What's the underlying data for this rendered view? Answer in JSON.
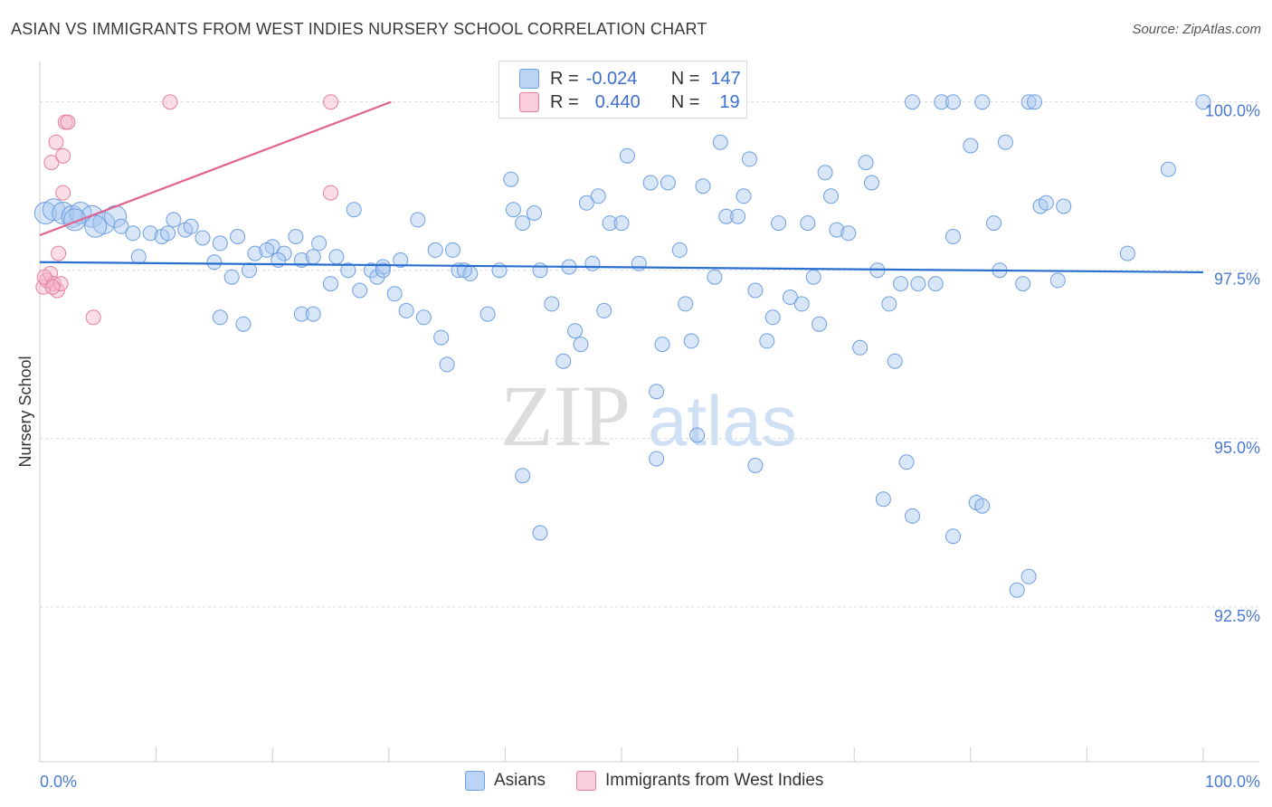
{
  "title": "ASIAN VS IMMIGRANTS FROM WEST INDIES NURSERY SCHOOL CORRELATION CHART",
  "source": "Source: ZipAtlas.com",
  "watermark": {
    "zip": "ZIP",
    "atlas": "atlas"
  },
  "legend": {
    "r_label": "R =",
    "n_label": "N =",
    "rows": [
      {
        "r": "-0.024",
        "n": "147",
        "color": "#a8c8f0"
      },
      {
        "r": "0.440",
        "n": "19",
        "color": "#f5b3c8"
      }
    ]
  },
  "bottom_legend": [
    {
      "label": "Asians",
      "color": "#a8c8f0"
    },
    {
      "label": "Immigrants from West Indies",
      "color": "#f5b3c8"
    }
  ],
  "chart_data": {
    "type": "scatter",
    "title": "ASIAN VS IMMIGRANTS FROM WEST INDIES NURSERY SCHOOL CORRELATION CHART",
    "xlabel": "",
    "ylabel": "Nursery School",
    "xlim": [
      0,
      100
    ],
    "ylim": [
      90.2,
      100.6
    ],
    "x_tick_labels": [
      "0.0%",
      "100.0%"
    ],
    "y_ticks": [
      100.0,
      97.5,
      95.0,
      92.5
    ],
    "y_tick_labels": [
      "100.0%",
      "97.5%",
      "95.0%",
      "92.5%"
    ],
    "series": [
      {
        "name": "Asians",
        "color": "#a8c8f0",
        "stroke": "#6f9fe0",
        "trend": {
          "x": [
            0,
            100
          ],
          "y": [
            97.62,
            97.47
          ],
          "color": "#2a6fd0"
        },
        "points": [
          [
            0.5,
            98.35
          ],
          [
            1.2,
            98.4
          ],
          [
            2.0,
            98.35
          ],
          [
            2.8,
            98.3
          ],
          [
            3.5,
            98.35
          ],
          [
            4.5,
            98.3
          ],
          [
            5.5,
            98.2
          ],
          [
            4.8,
            98.15
          ],
          [
            3.0,
            98.25
          ],
          [
            6.5,
            98.3
          ],
          [
            7.0,
            98.15
          ],
          [
            8.0,
            98.05
          ],
          [
            9.5,
            98.05
          ],
          [
            10.5,
            98.0
          ],
          [
            11.5,
            98.25
          ],
          [
            12.5,
            98.1
          ],
          [
            14.0,
            97.98
          ],
          [
            15.5,
            97.9
          ],
          [
            17.0,
            98.0
          ],
          [
            18.5,
            97.75
          ],
          [
            20.0,
            97.85
          ],
          [
            21.0,
            97.75
          ],
          [
            22.5,
            97.65
          ],
          [
            24.0,
            97.9
          ],
          [
            25.5,
            97.7
          ],
          [
            27.0,
            98.4
          ],
          [
            28.5,
            97.5
          ],
          [
            29.5,
            97.55
          ],
          [
            31.0,
            97.65
          ],
          [
            32.5,
            98.25
          ],
          [
            34.0,
            97.8
          ],
          [
            35.5,
            97.8
          ],
          [
            8.5,
            97.7
          ],
          [
            11.0,
            98.05
          ],
          [
            13.0,
            98.15
          ],
          [
            15.0,
            97.62
          ],
          [
            16.5,
            97.4
          ],
          [
            18.0,
            97.5
          ],
          [
            19.5,
            97.8
          ],
          [
            20.5,
            97.65
          ],
          [
            22.0,
            98.0
          ],
          [
            23.5,
            97.7
          ],
          [
            25.0,
            97.3
          ],
          [
            26.5,
            97.5
          ],
          [
            27.5,
            97.2
          ],
          [
            29.0,
            97.4
          ],
          [
            30.5,
            97.15
          ],
          [
            31.5,
            96.9
          ],
          [
            33.0,
            96.8
          ],
          [
            34.5,
            96.5
          ],
          [
            35.0,
            96.1
          ],
          [
            36.0,
            97.5
          ],
          [
            37.0,
            97.45
          ],
          [
            38.5,
            96.85
          ],
          [
            15.5,
            96.8
          ],
          [
            17.5,
            96.7
          ],
          [
            22.5,
            96.85
          ],
          [
            23.5,
            96.85
          ],
          [
            29.5,
            97.5
          ],
          [
            36.5,
            97.5
          ],
          [
            39.5,
            97.5
          ],
          [
            40.5,
            98.85
          ],
          [
            40.7,
            98.4
          ],
          [
            41.5,
            98.2
          ],
          [
            42.5,
            98.35
          ],
          [
            43.0,
            97.5
          ],
          [
            44.0,
            97.0
          ],
          [
            45.0,
            96.15
          ],
          [
            46.0,
            96.6
          ],
          [
            46.5,
            96.4
          ],
          [
            47.0,
            98.5
          ],
          [
            48.0,
            98.6
          ],
          [
            48.5,
            96.9
          ],
          [
            49.0,
            98.2
          ],
          [
            50.0,
            98.2
          ],
          [
            50.5,
            99.2
          ],
          [
            51.5,
            97.6
          ],
          [
            52.5,
            98.8
          ],
          [
            53.0,
            95.7
          ],
          [
            53.5,
            96.4
          ],
          [
            54.0,
            98.8
          ],
          [
            55.0,
            97.8
          ],
          [
            55.5,
            97.0
          ],
          [
            56.0,
            96.45
          ],
          [
            57.0,
            98.75
          ],
          [
            58.0,
            97.4
          ],
          [
            58.5,
            99.4
          ],
          [
            59.0,
            98.3
          ],
          [
            60.0,
            98.3
          ],
          [
            60.5,
            98.6
          ],
          [
            61.0,
            99.15
          ],
          [
            61.5,
            97.2
          ],
          [
            62.5,
            96.45
          ],
          [
            63.0,
            96.8
          ],
          [
            63.5,
            98.2
          ],
          [
            64.5,
            97.1
          ],
          [
            65.5,
            97.0
          ],
          [
            66.0,
            98.2
          ],
          [
            66.5,
            97.4
          ],
          [
            67.0,
            96.7
          ],
          [
            67.5,
            98.95
          ],
          [
            68.0,
            98.6
          ],
          [
            68.5,
            98.1
          ],
          [
            69.5,
            98.05
          ],
          [
            70.5,
            96.35
          ],
          [
            71.0,
            99.1
          ],
          [
            71.5,
            98.8
          ],
          [
            72.0,
            97.5
          ],
          [
            73.0,
            97.0
          ],
          [
            73.5,
            96.15
          ],
          [
            74.0,
            97.3
          ],
          [
            75.5,
            97.3
          ],
          [
            77.0,
            97.3
          ],
          [
            78.5,
            98.0
          ],
          [
            80.0,
            99.35
          ],
          [
            82.0,
            98.2
          ],
          [
            82.5,
            97.5
          ],
          [
            83.0,
            99.4
          ],
          [
            84.5,
            97.3
          ],
          [
            86.0,
            98.45
          ],
          [
            86.5,
            98.5
          ],
          [
            87.5,
            97.35
          ],
          [
            88.0,
            98.45
          ],
          [
            93.5,
            97.75
          ],
          [
            97.0,
            99.0
          ],
          [
            75.0,
            100.0
          ],
          [
            77.5,
            100.0
          ],
          [
            78.5,
            100.0
          ],
          [
            81.0,
            100.0
          ],
          [
            85.0,
            100.0
          ],
          [
            85.5,
            100.0
          ],
          [
            100.0,
            100.0
          ],
          [
            43.0,
            93.6
          ],
          [
            41.5,
            94.45
          ],
          [
            53.0,
            94.7
          ],
          [
            56.5,
            95.05
          ],
          [
            61.5,
            94.6
          ],
          [
            74.5,
            94.65
          ],
          [
            72.5,
            94.1
          ],
          [
            75.0,
            93.85
          ],
          [
            78.5,
            93.55
          ],
          [
            80.5,
            94.05
          ],
          [
            81.0,
            94.0
          ],
          [
            84.0,
            92.75
          ],
          [
            85.0,
            92.95
          ],
          [
            47.5,
            97.6
          ],
          [
            45.5,
            97.55
          ]
        ]
      },
      {
        "name": "Immigrants from West Indies",
        "color": "#f5b3c8",
        "stroke": "#e57fa0",
        "trend": {
          "x": [
            0,
            30.2
          ],
          "y": [
            98.02,
            100.0
          ],
          "color": "#e0648d"
        },
        "points": [
          [
            0.3,
            97.25
          ],
          [
            0.6,
            97.35
          ],
          [
            0.9,
            97.45
          ],
          [
            1.2,
            97.3
          ],
          [
            1.5,
            97.2
          ],
          [
            0.4,
            97.4
          ],
          [
            1.0,
            99.1
          ],
          [
            1.4,
            99.4
          ],
          [
            2.0,
            99.2
          ],
          [
            2.2,
            99.7
          ],
          [
            2.4,
            99.7
          ],
          [
            2.0,
            98.65
          ],
          [
            1.6,
            97.75
          ],
          [
            4.6,
            96.8
          ],
          [
            11.2,
            100.0
          ],
          [
            25.0,
            100.0
          ],
          [
            25.0,
            98.65
          ],
          [
            1.8,
            97.3
          ],
          [
            1.1,
            97.25
          ]
        ]
      }
    ]
  }
}
